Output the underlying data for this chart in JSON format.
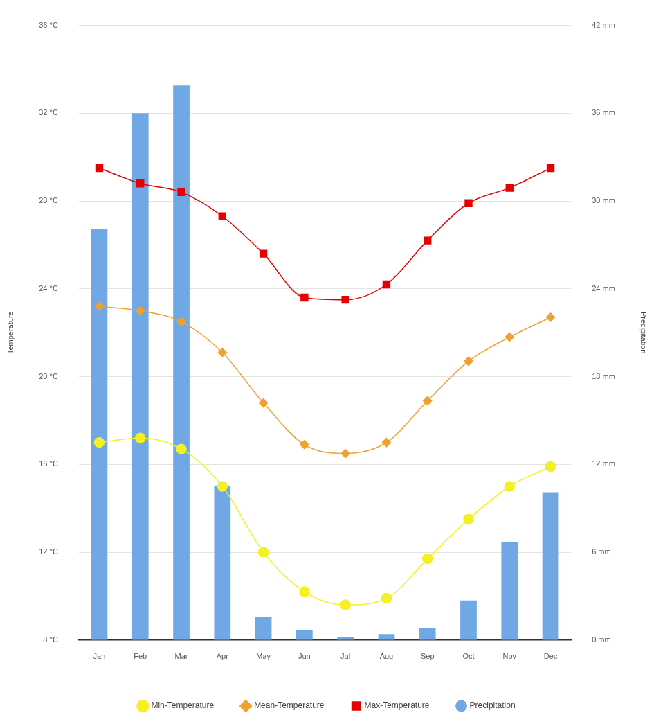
{
  "chart_data": {
    "type": "line",
    "ylabel": "Temperature",
    "y2label": "Precipitation",
    "categories": [
      "Jan",
      "Feb",
      "Mar",
      "Apr",
      "May",
      "Jun",
      "Jul",
      "Aug",
      "Sep",
      "Oct",
      "Nov",
      "Dec"
    ],
    "series": [
      {
        "name": "Min-Temperature",
        "color": "#f4f022",
        "marker": "circle",
        "values": [
          17.0,
          17.2,
          16.7,
          15.0,
          12.0,
          10.2,
          9.6,
          9.9,
          11.7,
          13.5,
          15.0,
          15.9
        ]
      },
      {
        "name": "Mean-Temperature",
        "color": "#f0a030",
        "marker": "diamond",
        "values": [
          23.2,
          23.0,
          22.5,
          21.1,
          18.8,
          16.9,
          16.5,
          17.0,
          18.9,
          20.7,
          21.8,
          22.7
        ]
      },
      {
        "name": "Max-Temperature",
        "color": "#e60000",
        "marker": "square",
        "values": [
          29.5,
          28.8,
          28.4,
          27.3,
          25.6,
          23.6,
          23.5,
          24.2,
          26.2,
          27.9,
          28.6,
          29.5
        ]
      },
      {
        "name": "Precipitation",
        "type": "bar",
        "axis": "y2",
        "color": "#6fa8e4",
        "values": [
          28.1,
          36.0,
          37.9,
          10.5,
          1.6,
          0.7,
          0.2,
          0.4,
          0.8,
          2.7,
          6.7,
          10.1
        ]
      }
    ],
    "ylim": [
      8,
      36
    ],
    "yticks": [
      {
        "value": 8,
        "label": "8 °C"
      },
      {
        "value": 12,
        "label": "12 °C"
      },
      {
        "value": 16,
        "label": "16 °C"
      },
      {
        "value": 20,
        "label": "20 °C"
      },
      {
        "value": 24,
        "label": "24 °C"
      },
      {
        "value": 28,
        "label": "28 °C"
      },
      {
        "value": 32,
        "label": "32 °C"
      },
      {
        "value": 36,
        "label": "36 °C"
      }
    ],
    "y2lim": [
      0,
      42
    ],
    "y2ticks": [
      {
        "value": 0,
        "label": "0 mm"
      },
      {
        "value": 6,
        "label": "6 mm"
      },
      {
        "value": 12,
        "label": "12 mm"
      },
      {
        "value": 18,
        "label": "18 mm"
      },
      {
        "value": 24,
        "label": "24 mm"
      },
      {
        "value": 30,
        "label": "30 mm"
      },
      {
        "value": 36,
        "label": "36 mm"
      },
      {
        "value": 42,
        "label": "42 mm"
      }
    ],
    "grid": "y",
    "legend": "bottom"
  }
}
